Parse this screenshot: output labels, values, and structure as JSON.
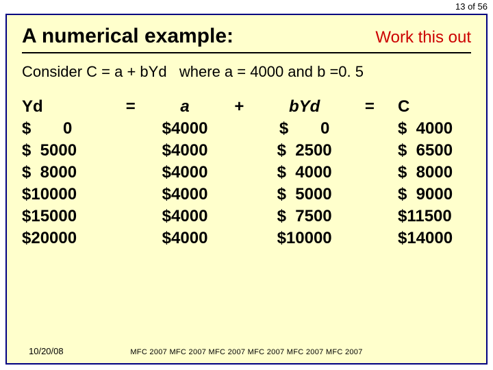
{
  "page_num": "13 of 56",
  "title": "A numerical example:",
  "work": "Work this out",
  "consider": "Consider C = a + bYd   where a = 4000 and b =0. 5",
  "headers": {
    "yd": "Yd",
    "eq": "=",
    "a": "a",
    "plus": "+",
    "byd": "bYd",
    "eq2": "=",
    "c": "C"
  },
  "rows": [
    {
      "yd": "$       0",
      "a": "$4000",
      "byd": "$       0",
      "c": "$  4000"
    },
    {
      "yd": "$  5000",
      "a": "$4000",
      "byd": "$  2500",
      "c": "$  6500"
    },
    {
      "yd": "$  8000",
      "a": "$4000",
      "byd": "$  4000",
      "c": "$  8000"
    },
    {
      "yd": "$10000",
      "a": "$4000",
      "byd": "$  5000",
      "c": "$  9000"
    },
    {
      "yd": "$15000",
      "a": "$4000",
      "byd": "$  7500",
      "c": "$11500"
    },
    {
      "yd": "$20000",
      "a": "$4000",
      "byd": "$10000",
      "c": "$14000"
    }
  ],
  "date": "10/20/08",
  "footer": "MFC 2007 MFC 2007 MFC 2007 MFC 2007 MFC 2007 MFC 2007",
  "colors": {
    "slide_bg": "#ffffcc",
    "slide_border": "#000080",
    "work_color": "#cc0000"
  }
}
